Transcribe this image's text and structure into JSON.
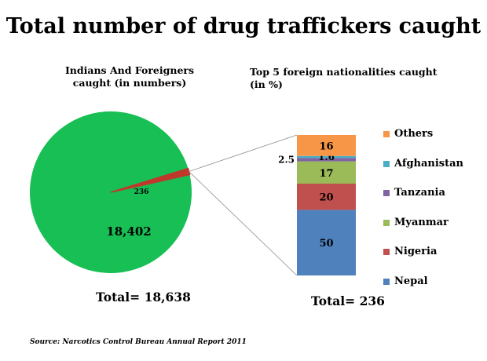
{
  "title": "Total number of drug traffickers caught",
  "source": "Source: Narcotics Control Bureau Annual Report 2011",
  "chart_data": [
    {
      "type": "pie",
      "title": "Indians And Foreigners caught (in numbers)",
      "slices": [
        {
          "label": "18,402",
          "value": 18402,
          "color": "#17bf55"
        },
        {
          "label": "236",
          "value": 236,
          "color": "#c0382b"
        }
      ],
      "total_label": "Total= 18,638"
    },
    {
      "type": "bar",
      "stacked": true,
      "title": "Top 5 foreign nationalities caught (in %)",
      "categories": [
        "Nepal",
        "Nigeria",
        "Myanmar",
        "Tanzania",
        "Afghanistan",
        "Others"
      ],
      "values": [
        50,
        20,
        17,
        2.5,
        1.6,
        16
      ],
      "value_labels": [
        "50",
        "20",
        "17",
        "2.5",
        "1.6",
        "16"
      ],
      "colors": [
        "#4f81bd",
        "#c0504d",
        "#9bbb59",
        "#8064a2",
        "#4bacc6",
        "#f79646"
      ],
      "legend": [
        "Others",
        "Afghanistan",
        "Tanzania",
        "Myanmar",
        "Nigeria",
        "Nepal"
      ],
      "total_label": "Total= 236"
    }
  ]
}
